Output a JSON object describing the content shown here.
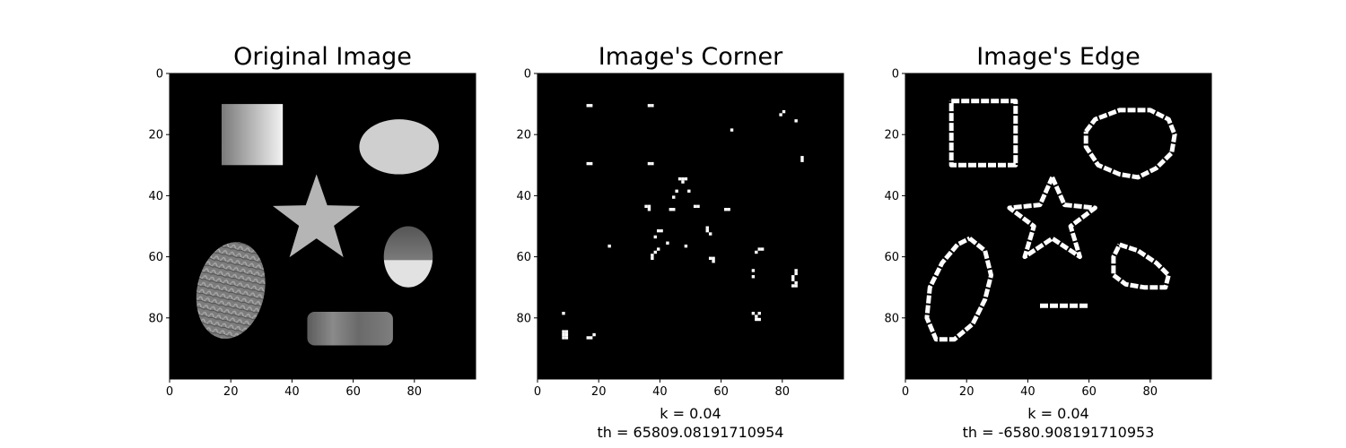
{
  "chart_data": [
    {
      "type": "image",
      "title": "Original Image",
      "xlabel": "",
      "xticks": [
        "0",
        "20",
        "40",
        "60",
        "80"
      ],
      "yticks": [
        "0",
        "20",
        "40",
        "60",
        "80"
      ],
      "xlim": [
        0,
        100
      ],
      "ylim": [
        100,
        0
      ],
      "colormap": "gray",
      "shapes": [
        {
          "kind": "gradient-square",
          "x": [
            17,
            37
          ],
          "y": [
            10,
            30
          ]
        },
        {
          "kind": "blob",
          "label": "oval",
          "center": [
            75,
            24
          ],
          "radius": [
            13,
            9
          ]
        },
        {
          "kind": "star",
          "center": [
            48,
            48
          ],
          "outer_radius": 15,
          "inner_radius": 6
        },
        {
          "kind": "textured-blob",
          "label": "leaf",
          "center": [
            20,
            71
          ],
          "radius": [
            11,
            16
          ]
        },
        {
          "kind": "half-shaded-blob",
          "label": "cup",
          "center": [
            78,
            60
          ],
          "radius": [
            8,
            10
          ]
        },
        {
          "kind": "textured-blob",
          "label": "pot",
          "x": [
            45,
            73
          ],
          "y": [
            78,
            89
          ]
        }
      ]
    },
    {
      "type": "image",
      "title": "Image's Corner",
      "xlabel": "k = 0.04\nth = 65809.08191710954",
      "xlabel_lines": [
        "k = 0.04",
        "th = 65809.08191710954"
      ],
      "xticks": [
        "0",
        "20",
        "40",
        "60",
        "80"
      ],
      "yticks": [
        "0",
        "20",
        "40",
        "60",
        "80"
      ],
      "xlim": [
        0,
        100
      ],
      "ylim": [
        100,
        0
      ],
      "colormap": "binary",
      "points": [
        [
          16,
          10
        ],
        [
          17,
          10
        ],
        [
          36,
          10
        ],
        [
          37,
          10
        ],
        [
          16,
          29
        ],
        [
          17,
          29
        ],
        [
          36,
          29
        ],
        [
          37,
          29
        ],
        [
          63,
          18
        ],
        [
          79,
          13
        ],
        [
          80,
          12
        ],
        [
          84,
          15
        ],
        [
          86,
          27
        ],
        [
          86,
          28
        ],
        [
          46,
          34
        ],
        [
          47,
          34
        ],
        [
          48,
          34
        ],
        [
          47,
          35
        ],
        [
          45,
          38
        ],
        [
          44,
          40
        ],
        [
          49,
          38
        ],
        [
          35,
          43
        ],
        [
          36,
          43
        ],
        [
          36,
          44
        ],
        [
          43,
          44
        ],
        [
          44,
          44
        ],
        [
          51,
          43
        ],
        [
          52,
          43
        ],
        [
          61,
          44
        ],
        [
          62,
          44
        ],
        [
          39,
          51
        ],
        [
          40,
          51
        ],
        [
          38,
          53
        ],
        [
          55,
          50
        ],
        [
          55,
          51
        ],
        [
          56,
          52
        ],
        [
          23,
          56
        ],
        [
          42,
          55
        ],
        [
          48,
          56
        ],
        [
          39,
          57
        ],
        [
          38,
          58
        ],
        [
          37,
          59
        ],
        [
          37,
          60
        ],
        [
          72,
          57
        ],
        [
          73,
          57
        ],
        [
          71,
          58
        ],
        [
          56,
          60
        ],
        [
          57,
          60
        ],
        [
          57,
          61
        ],
        [
          70,
          64
        ],
        [
          70,
          66
        ],
        [
          84,
          64
        ],
        [
          84,
          65
        ],
        [
          83,
          66
        ],
        [
          83,
          67
        ],
        [
          84,
          68
        ],
        [
          83,
          69
        ],
        [
          84,
          69
        ],
        [
          70,
          78
        ],
        [
          72,
          78
        ],
        [
          71,
          79
        ],
        [
          71,
          80
        ],
        [
          72,
          80
        ],
        [
          8,
          78
        ],
        [
          8,
          84
        ],
        [
          9,
          84
        ],
        [
          8,
          85
        ],
        [
          9,
          85
        ],
        [
          8,
          86
        ],
        [
          9,
          86
        ],
        [
          16,
          86
        ],
        [
          17,
          86
        ],
        [
          18,
          85
        ]
      ]
    },
    {
      "type": "image",
      "title": "Image's Edge",
      "xlabel": "k = 0.04\nth = -6580.908191710953",
      "xlabel_lines": [
        "k = 0.04",
        "th = -6580.908191710953"
      ],
      "xticks": [
        "0",
        "20",
        "40",
        "60",
        "80"
      ],
      "yticks": [
        "0",
        "20",
        "40",
        "60",
        "80"
      ],
      "xlim": [
        0,
        100
      ],
      "ylim": [
        100,
        0
      ],
      "colormap": "binary",
      "outlines": [
        {
          "label": "square",
          "points": [
            [
              15,
              9
            ],
            [
              36,
              9
            ],
            [
              36,
              30
            ],
            [
              15,
              30
            ],
            [
              15,
              9
            ]
          ]
        },
        {
          "label": "oval",
          "points": [
            [
              59,
              19
            ],
            [
              62,
              15
            ],
            [
              70,
              12
            ],
            [
              80,
              12
            ],
            [
              86,
              15
            ],
            [
              88,
              20
            ],
            [
              87,
              26
            ],
            [
              82,
              31
            ],
            [
              76,
              34
            ],
            [
              70,
              33
            ],
            [
              63,
              30
            ],
            [
              59,
              24
            ],
            [
              59,
              19
            ]
          ]
        },
        {
          "label": "star",
          "points": [
            [
              48,
              34
            ],
            [
              52,
              43
            ],
            [
              62,
              44
            ],
            [
              54,
              50
            ],
            [
              57,
              60
            ],
            [
              48,
              54
            ],
            [
              39,
              60
            ],
            [
              42,
              50
            ],
            [
              34,
              44
            ],
            [
              44,
              43
            ],
            [
              48,
              34
            ]
          ]
        },
        {
          "label": "leaf",
          "points": [
            [
              21,
              54
            ],
            [
              26,
              58
            ],
            [
              28,
              66
            ],
            [
              26,
              74
            ],
            [
              22,
              82
            ],
            [
              16,
              87
            ],
            [
              10,
              87
            ],
            [
              7,
              80
            ],
            [
              8,
              70
            ],
            [
              12,
              62
            ],
            [
              17,
              56
            ],
            [
              21,
              54
            ]
          ]
        },
        {
          "label": "cup",
          "points": [
            [
              70,
              56
            ],
            [
              76,
              58
            ],
            [
              82,
              62
            ],
            [
              86,
              66
            ],
            [
              85,
              70
            ],
            [
              78,
              70
            ],
            [
              72,
              69
            ],
            [
              68,
              66
            ],
            [
              68,
              60
            ],
            [
              70,
              56
            ]
          ]
        },
        {
          "label": "pot",
          "points": [
            [
              44,
              76
            ],
            [
              50,
              76
            ],
            [
              53,
              76
            ],
            [
              60,
              76
            ]
          ]
        }
      ]
    }
  ]
}
